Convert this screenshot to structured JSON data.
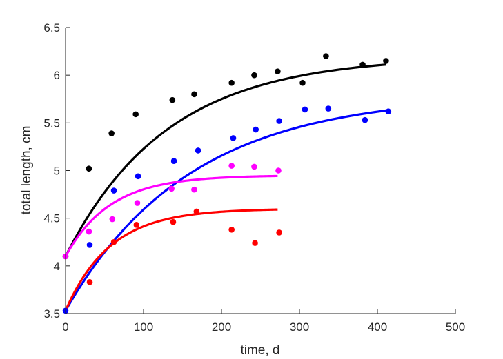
{
  "chart_data": {
    "type": "scatter",
    "title": "",
    "xlabel": "time, d",
    "ylabel": "total length, cm",
    "xlim": [
      0,
      500
    ],
    "ylim": [
      3.5,
      6.5
    ],
    "grid": false,
    "xticks": [
      "0",
      "100",
      "200",
      "300",
      "400",
      "500"
    ],
    "yticks": [
      "3.5",
      "4",
      "4.5",
      "5",
      "5.5",
      "6",
      "6.5"
    ],
    "series": [
      {
        "color": "#000000",
        "points": [
          [
            0,
            4.1
          ],
          [
            30,
            5.02
          ],
          [
            59,
            5.39
          ],
          [
            90,
            5.59
          ],
          [
            137,
            5.74
          ],
          [
            165,
            5.8
          ],
          [
            213,
            5.92
          ],
          [
            242,
            6.0
          ],
          [
            272,
            6.04
          ],
          [
            304,
            5.92
          ],
          [
            334,
            6.2
          ],
          [
            381,
            6.11
          ],
          [
            411,
            6.15
          ]
        ],
        "fit": {
          "type": "von-bertalanffy",
          "L0": 4.1,
          "Linf": 6.2,
          "k": 0.0077,
          "tmax": 411
        }
      },
      {
        "color": "#0000ff",
        "points": [
          [
            0,
            3.53
          ],
          [
            31,
            4.22
          ],
          [
            62,
            4.79
          ],
          [
            93,
            4.94
          ],
          [
            139,
            5.1
          ],
          [
            170,
            5.21
          ],
          [
            215,
            5.34
          ],
          [
            244,
            5.43
          ],
          [
            274,
            5.52
          ],
          [
            307,
            5.64
          ],
          [
            337,
            5.65
          ],
          [
            384,
            5.53
          ],
          [
            414,
            5.62
          ]
        ],
        "fit": {
          "type": "von-bertalanffy",
          "L0": 3.53,
          "Linf": 5.8,
          "k": 0.0063,
          "tmax": 414
        }
      },
      {
        "color": "#ff00ff",
        "points": [
          [
            0,
            4.1
          ],
          [
            30,
            4.36
          ],
          [
            60,
            4.49
          ],
          [
            92,
            4.66
          ],
          [
            136,
            4.81
          ],
          [
            165,
            4.8
          ],
          [
            213,
            5.05
          ],
          [
            242,
            5.04
          ],
          [
            273,
            5.0
          ]
        ],
        "fit": {
          "type": "von-bertalanffy",
          "L0": 4.1,
          "Linf": 4.95,
          "k": 0.0175,
          "tmax": 272
        }
      },
      {
        "color": "#ff0000",
        "points": [
          [
            31,
            3.83
          ],
          [
            62,
            4.25
          ],
          [
            91,
            4.43
          ],
          [
            138,
            4.46
          ],
          [
            168,
            4.57
          ],
          [
            213,
            4.38
          ],
          [
            243,
            4.24
          ],
          [
            274,
            4.35
          ]
        ],
        "fit": {
          "type": "von-bertalanffy",
          "L0": 3.53,
          "Linf": 4.6,
          "k": 0.0175,
          "tmax": 272
        }
      }
    ]
  }
}
